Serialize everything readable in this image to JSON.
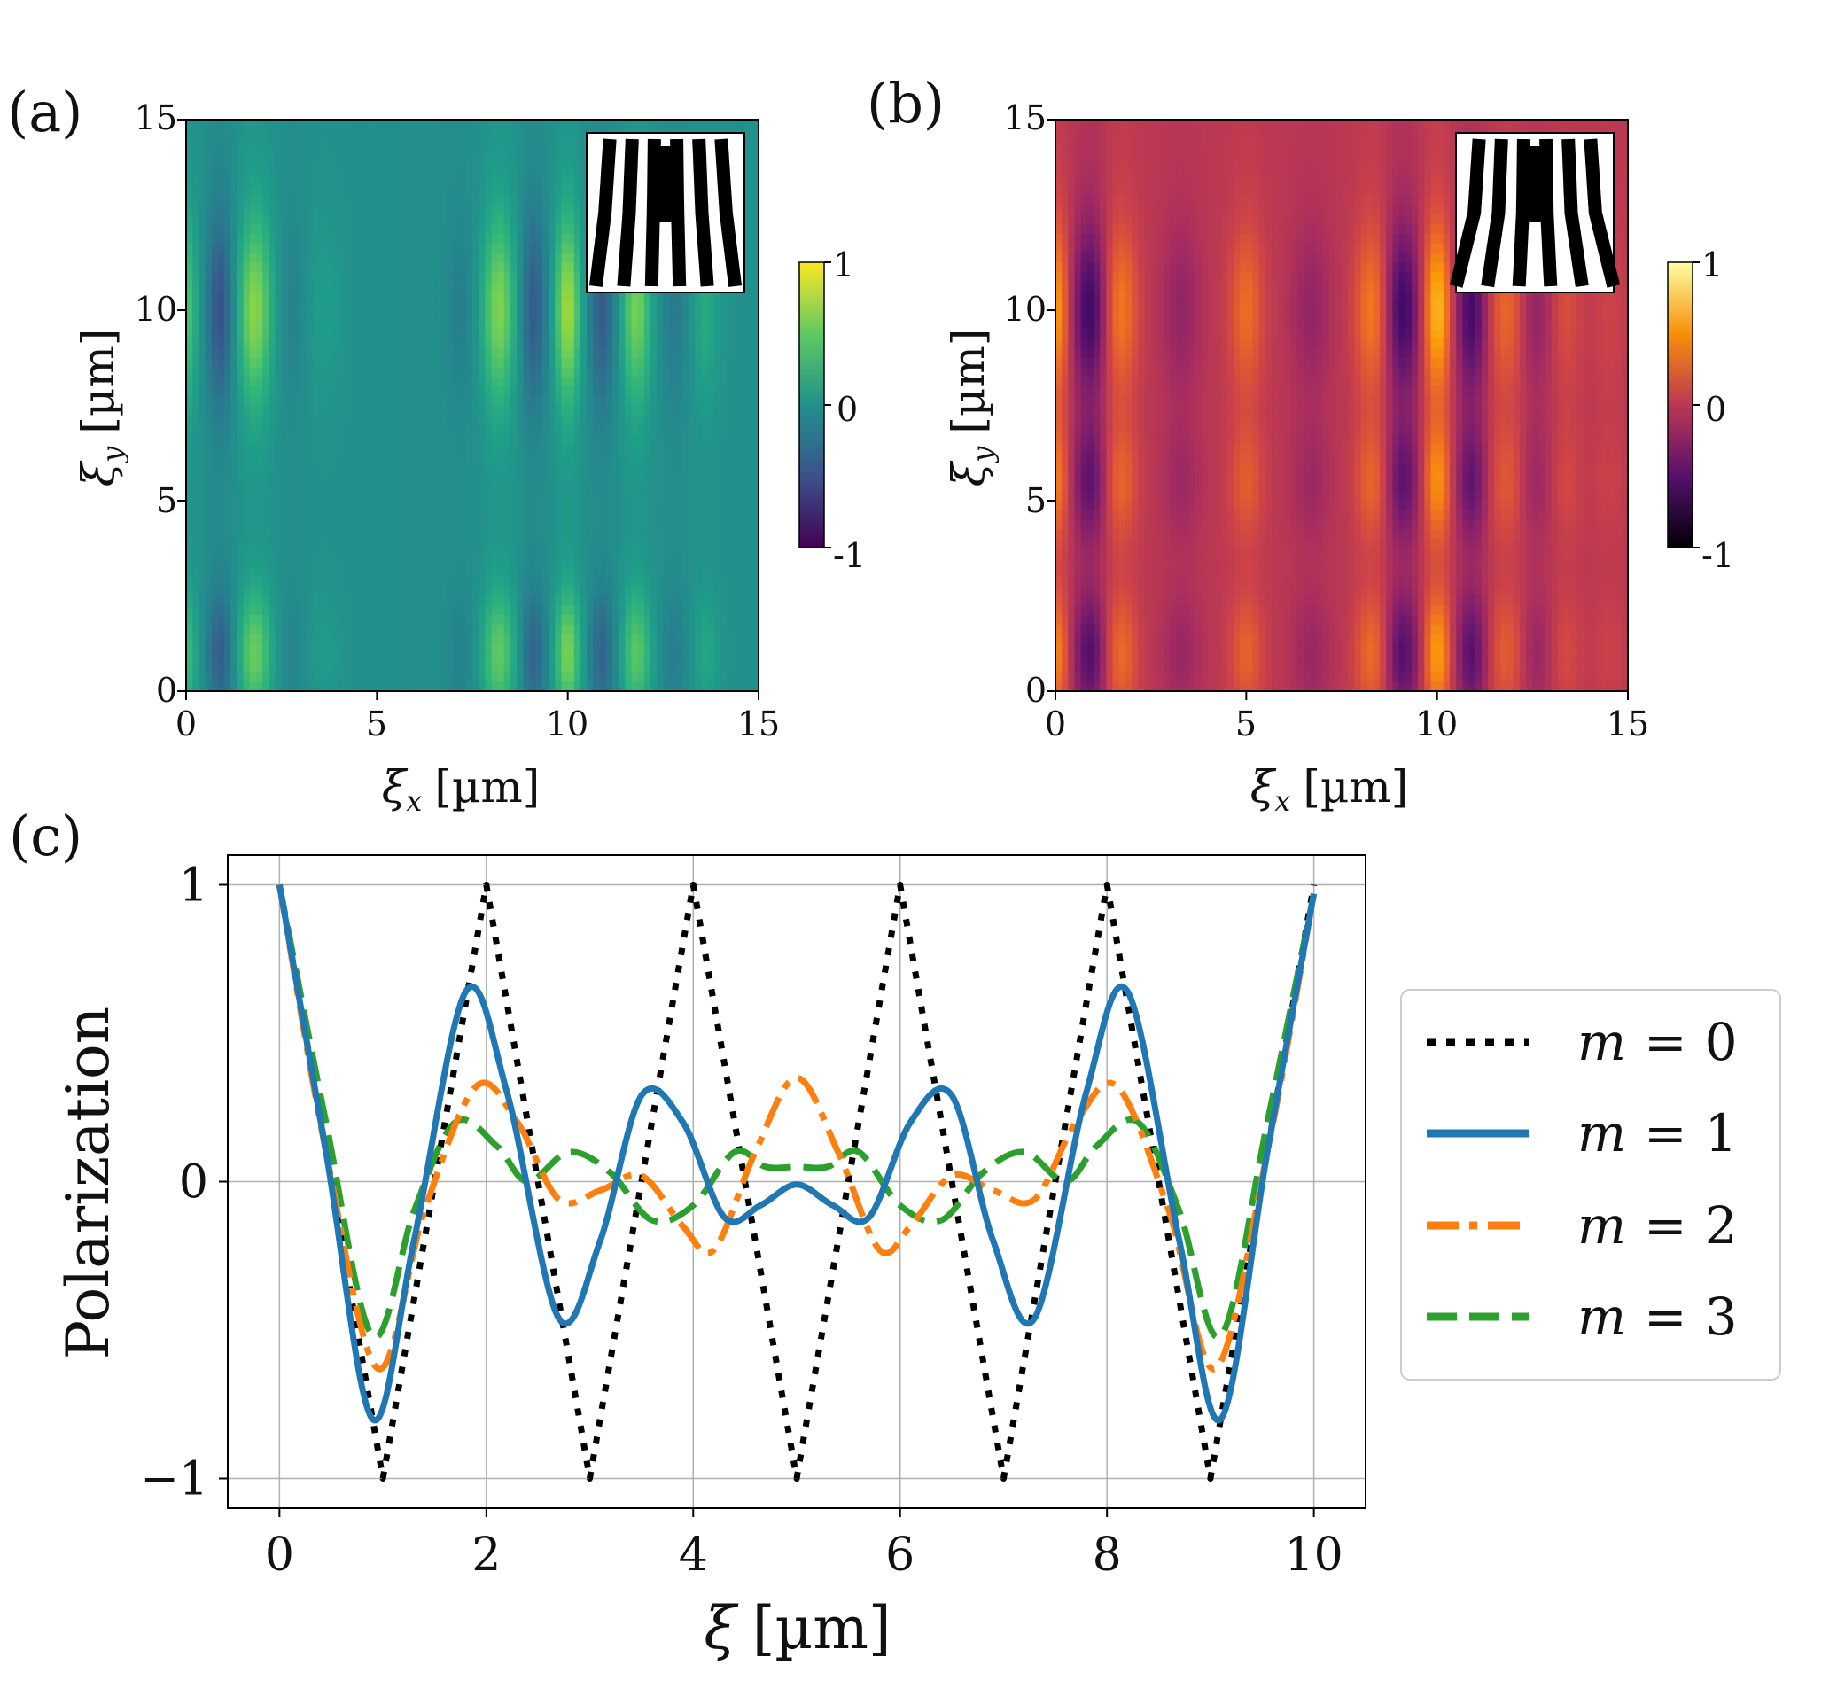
{
  "panels": {
    "a": {
      "label": "(a)",
      "xlabel_sym": "ξ",
      "xlabel_sub": "x",
      "xlabel_unit": "[µm]",
      "ylabel_sym": "ξ",
      "ylabel_sub": "y",
      "ylabel_unit": "[µm]",
      "xticks": [
        "0",
        "5",
        "10",
        "15"
      ],
      "yticks": [
        "0",
        "5",
        "10",
        "15"
      ],
      "colorbar_ticks": [
        "1",
        "0",
        "-1"
      ],
      "colormap": "viridis"
    },
    "b": {
      "label": "(b)",
      "xlabel_sym": "ξ",
      "xlabel_sub": "x",
      "xlabel_unit": "[µm]",
      "ylabel_sym": "ξ",
      "ylabel_sub": "y",
      "ylabel_unit": "[µm]",
      "xticks": [
        "0",
        "5",
        "10",
        "15"
      ],
      "yticks": [
        "0",
        "5",
        "10",
        "15"
      ],
      "colorbar_ticks": [
        "1",
        "0",
        "-1"
      ],
      "colormap": "inferno"
    },
    "c": {
      "label": "(c)"
    }
  },
  "chart_data": [
    {
      "type": "heatmap",
      "panel": "a",
      "title": "",
      "xlabel": "ξx [µm]",
      "ylabel": "ξy [µm]",
      "xlim": [
        0,
        15
      ],
      "ylim": [
        0,
        15
      ],
      "zlim": [
        -1,
        1
      ],
      "colormap": "viridis",
      "inset": "fork grating (topological charge 1)",
      "x_peaks": [
        0.0,
        1.8,
        8.2,
        10.0,
        11.8
      ],
      "x_troughs": [
        0.9,
        9.1,
        10.9
      ],
      "y_bright_bands": [
        1.0,
        10.0
      ]
    },
    {
      "type": "heatmap",
      "panel": "b",
      "title": "",
      "xlabel": "ξx [µm]",
      "ylabel": "ξy [µm]",
      "xlim": [
        0,
        15
      ],
      "ylim": [
        0,
        15
      ],
      "zlim": [
        -1,
        1
      ],
      "colormap": "inferno",
      "inset": "fork grating (topological charge 2)",
      "x_peaks": [
        0.0,
        1.7,
        5.0,
        8.3,
        10.0
      ],
      "x_troughs": [
        0.9,
        9.1,
        10.9
      ],
      "y_bright_bands": [
        1.0,
        5.5,
        10.0
      ]
    },
    {
      "type": "line",
      "panel": "c",
      "title": "",
      "xlabel_sym": "ξ",
      "xlabel_unit": "[µm]",
      "xlabel": "ξ [µm]",
      "ylabel": "Polarization",
      "xlim": [
        -0.5,
        10.5
      ],
      "ylim": [
        -1.1,
        1.1
      ],
      "xticks": [
        "0",
        "2",
        "4",
        "6",
        "8",
        "10"
      ],
      "yticks": [
        "1",
        "0",
        "−1"
      ],
      "grid": true,
      "legend_position": "right",
      "series": [
        {
          "name": "m = 0",
          "legend_var": "m",
          "legend_val": "0",
          "color": "#000000",
          "style": "dotted",
          "x": [
            0,
            1,
            2,
            3,
            4,
            5,
            6,
            7,
            8,
            9,
            10
          ],
          "y": [
            1,
            -1,
            1,
            -1,
            1,
            -1,
            1,
            -1,
            1,
            -1,
            1
          ]
        },
        {
          "name": "m = 1",
          "legend_var": "m",
          "legend_val": "1",
          "color": "#1f77b4",
          "style": "solid",
          "x": [
            0,
            0.45,
            0.9,
            1.3,
            1.8,
            2.2,
            2.7,
            3.1,
            3.5,
            3.9,
            4.3,
            4.65,
            5.0,
            5.35,
            5.7,
            6.1,
            6.5,
            6.9,
            7.3,
            7.8,
            8.2,
            8.7,
            9.1,
            9.55,
            10
          ],
          "y": [
            1.0,
            0.1,
            -0.8,
            -0.2,
            0.64,
            0.3,
            -0.46,
            -0.2,
            0.29,
            0.2,
            -0.12,
            -0.08,
            -0.01,
            -0.08,
            -0.12,
            0.2,
            0.29,
            -0.2,
            -0.46,
            0.3,
            0.64,
            -0.2,
            -0.8,
            0.1,
            0.97
          ]
        },
        {
          "name": "m = 2",
          "legend_var": "m",
          "legend_val": "2",
          "color": "#ff7f0e",
          "style": "dashdot",
          "x": [
            0,
            0.45,
            0.95,
            1.4,
            1.9,
            2.3,
            2.7,
            3.1,
            3.5,
            3.9,
            4.2,
            4.6,
            5.0,
            5.4,
            5.8,
            6.1,
            6.5,
            6.9,
            7.3,
            7.7,
            8.1,
            8.6,
            9.05,
            9.55,
            10
          ],
          "y": [
            1.0,
            0.1,
            -0.63,
            -0.1,
            0.32,
            0.2,
            -0.06,
            -0.03,
            0.02,
            -0.15,
            -0.23,
            0.1,
            0.35,
            0.1,
            -0.23,
            -0.15,
            0.02,
            -0.03,
            -0.06,
            0.2,
            0.32,
            -0.1,
            -0.63,
            0.1,
            0.97
          ]
        },
        {
          "name": "m = 3",
          "legend_var": "m",
          "legend_val": "3",
          "color": "#2ca02c",
          "style": "dashed",
          "x": [
            0,
            0.45,
            0.9,
            1.3,
            1.7,
            2.1,
            2.4,
            2.8,
            3.2,
            3.6,
            4.0,
            4.4,
            4.7,
            5.0,
            5.3,
            5.6,
            6.0,
            6.4,
            6.8,
            7.2,
            7.6,
            7.9,
            8.3,
            8.7,
            9.1,
            9.55,
            10
          ],
          "y": [
            1.0,
            0.2,
            -0.52,
            -0.1,
            0.2,
            0.12,
            0.0,
            0.1,
            0.03,
            -0.13,
            -0.08,
            0.1,
            0.05,
            0.05,
            0.05,
            0.1,
            -0.08,
            -0.13,
            0.03,
            0.1,
            0.0,
            0.12,
            0.2,
            -0.1,
            -0.52,
            0.2,
            0.97
          ]
        }
      ]
    }
  ]
}
